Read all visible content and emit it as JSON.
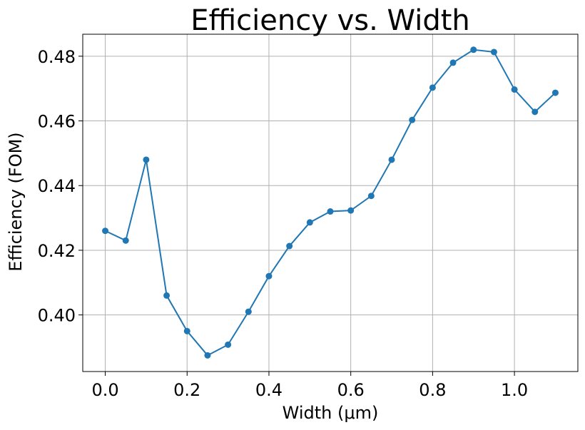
{
  "chart_data": {
    "type": "line",
    "title": "Efficiency vs. Width",
    "xlabel": "Width (μm)",
    "ylabel": "Efficiency (FOM)",
    "xlim": [
      -0.055,
      1.155
    ],
    "ylim": [
      0.3825,
      0.4868
    ],
    "grid": true,
    "marker": "circle",
    "series": [
      {
        "color": "#1f77b4",
        "x": [
          0.0,
          0.05,
          0.1,
          0.15,
          0.2,
          0.25,
          0.3,
          0.35,
          0.4,
          0.45,
          0.5,
          0.55,
          0.6,
          0.65,
          0.7,
          0.75,
          0.8,
          0.85,
          0.9,
          0.95,
          1.0,
          1.05,
          1.1
        ],
        "y": [
          0.426,
          0.423,
          0.448,
          0.406,
          0.395,
          0.3875,
          0.3908,
          0.401,
          0.412,
          0.4213,
          0.4286,
          0.432,
          0.4323,
          0.4368,
          0.448,
          0.4603,
          0.4703,
          0.478,
          0.482,
          0.4813,
          0.4697,
          0.4628,
          0.4687
        ]
      }
    ],
    "xticks": [
      0.0,
      0.2,
      0.4,
      0.6,
      0.8,
      1.0
    ],
    "xtick_labels": [
      "0.0",
      "0.2",
      "0.4",
      "0.6",
      "0.8",
      "1.0"
    ],
    "yticks": [
      0.4,
      0.42,
      0.44,
      0.46,
      0.48
    ],
    "ytick_labels": [
      "0.40",
      "0.42",
      "0.44",
      "0.46",
      "0.48"
    ]
  }
}
